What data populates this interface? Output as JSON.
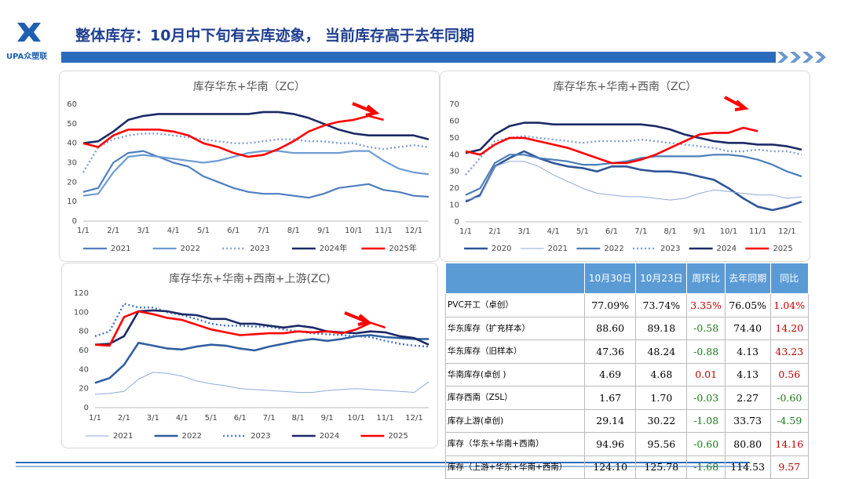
{
  "header": {
    "logo": "UPA众塑联",
    "title": "整体库存：10月中下旬有去库迹象， 当前库存高于去年同期"
  },
  "chart_data": [
    {
      "type": "line",
      "title": "库存华东+华南（ZC）",
      "categories": [
        "1/1",
        null,
        "2/1",
        null,
        "3/1",
        null,
        "4/1",
        null,
        "5/1",
        null,
        "6/1",
        null,
        "7/1",
        null,
        "8/1",
        null,
        "9/1",
        null,
        "10/1",
        null,
        "11/1",
        null,
        "12/1",
        null
      ],
      "ylim": [
        0,
        60
      ],
      "yticks": [
        0,
        10,
        20,
        30,
        40,
        50,
        60
      ],
      "grid": false,
      "series": [
        {
          "name": "2021",
          "color": "#4f7fc0",
          "style": "solid",
          "values": [
            15,
            17,
            30,
            35,
            36,
            33,
            30,
            28,
            23,
            20,
            17,
            15,
            14,
            14,
            13,
            12,
            14,
            17,
            18,
            19,
            16,
            15,
            13,
            12.5
          ]
        },
        {
          "name": "2022",
          "color": "#6e9cd2",
          "style": "solid",
          "values": [
            13,
            14,
            25,
            33,
            34,
            33,
            32,
            31,
            30,
            31,
            33,
            35,
            36,
            36,
            35,
            35,
            35,
            35,
            36,
            36,
            31,
            27,
            25,
            24
          ]
        },
        {
          "name": "2023",
          "color": "#7f9fd6",
          "style": "dotted",
          "values": [
            25,
            38,
            42,
            44,
            45,
            45,
            44,
            43,
            42,
            41,
            40,
            40,
            41,
            42,
            42,
            41,
            41,
            40,
            40,
            38,
            37,
            38,
            39,
            38
          ]
        },
        {
          "name": "2024年",
          "color": "#1c2a66",
          "style": "thick",
          "values": [
            40,
            41,
            46,
            52,
            54,
            55,
            55,
            55,
            55,
            55,
            55,
            55,
            56,
            56,
            55,
            53,
            50,
            47,
            45,
            44,
            44,
            44,
            44,
            42
          ]
        },
        {
          "name": "2025年",
          "color": "#ff0000",
          "style": "thick",
          "values": [
            40,
            38,
            44,
            47,
            47,
            47,
            46,
            44,
            40,
            38,
            35,
            33,
            34,
            37,
            41,
            46,
            49,
            51,
            52,
            54,
            52,
            null,
            null,
            null
          ]
        }
      ]
    },
    {
      "type": "line",
      "title": "库存华东+华南+西南（ZC）",
      "categories": [
        "1/1",
        null,
        "2/1",
        null,
        "3/1",
        null,
        "4/1",
        null,
        "5/1",
        null,
        "6/1",
        null,
        "7/1",
        null,
        "8/1",
        null,
        "9/1",
        null,
        "10/1",
        null,
        "11/1",
        null,
        "12/1",
        null
      ],
      "ylim": [
        0,
        70
      ],
      "yticks": [
        0,
        10,
        20,
        30,
        40,
        50,
        60,
        70
      ],
      "grid": false,
      "series": [
        {
          "name": "2020",
          "color": "#2f5597",
          "style": "thick",
          "values": [
            12,
            16,
            33,
            38,
            42,
            38,
            35,
            33,
            32,
            30,
            33,
            33,
            31,
            30,
            30,
            29,
            27,
            25,
            20,
            14,
            9,
            7,
            9,
            12
          ]
        },
        {
          "name": "2021",
          "color": "#8eaadb",
          "style": "thin",
          "values": [
            13,
            15,
            33,
            36,
            36,
            33,
            28,
            24,
            20,
            17,
            16,
            15,
            15,
            14,
            13,
            14,
            17,
            19,
            18,
            17,
            16,
            16,
            14,
            15
          ]
        },
        {
          "name": "2022",
          "color": "#4a7ebb",
          "style": "solid",
          "values": [
            16,
            20,
            35,
            40,
            40,
            38,
            37,
            36,
            34,
            34,
            35,
            36,
            38,
            39,
            39,
            39,
            39,
            40,
            40,
            39,
            37,
            34,
            30,
            27
          ]
        },
        {
          "name": "2023",
          "color": "#7f9fd6",
          "style": "dotted",
          "values": [
            28,
            38,
            48,
            50,
            51,
            50,
            49,
            48,
            47,
            48,
            48,
            48,
            49,
            48,
            47,
            46,
            45,
            44,
            42,
            42,
            43,
            42,
            42,
            40
          ]
        },
        {
          "name": "2024",
          "color": "#1c2a66",
          "style": "thick",
          "values": [
            41,
            43,
            52,
            57,
            59,
            59,
            58,
            58,
            58,
            58,
            58,
            58,
            58,
            57,
            55,
            52,
            50,
            48,
            47,
            47,
            46,
            46,
            45,
            43
          ]
        },
        {
          "name": "2025",
          "color": "#ff0000",
          "style": "thick",
          "values": [
            42,
            40,
            46,
            50,
            50,
            48,
            46,
            44,
            41,
            38,
            35,
            35,
            37,
            40,
            44,
            48,
            52,
            53,
            53,
            56,
            54,
            null,
            null,
            null
          ]
        }
      ]
    },
    {
      "type": "line",
      "title": "库存华东+华南+西南+上游(ZC)",
      "categories": [
        "1/1",
        null,
        "2/1",
        null,
        "3/1",
        null,
        "4/1",
        null,
        "5/1",
        null,
        "6/1",
        null,
        "7/1",
        null,
        "8/1",
        null,
        "9/1",
        null,
        "10/1",
        null,
        "11/1",
        null,
        "12/1",
        null
      ],
      "ylim": [
        0,
        120
      ],
      "yticks": [
        0,
        20,
        40,
        60,
        80,
        100,
        120
      ],
      "grid": false,
      "series": [
        {
          "name": "2021",
          "color": "#8eaadb",
          "style": "thin",
          "values": [
            14,
            15,
            17,
            30,
            37,
            36,
            33,
            28,
            25,
            23,
            20,
            19,
            18,
            17,
            16,
            16,
            18,
            19,
            20,
            19,
            18,
            17,
            16,
            27
          ]
        },
        {
          "name": "2022",
          "color": "#2f5fa0",
          "style": "thick",
          "values": [
            26,
            31,
            45,
            68,
            65,
            62,
            61,
            64,
            66,
            65,
            62,
            60,
            64,
            67,
            70,
            72,
            70,
            72,
            75,
            76,
            74,
            73,
            72,
            72
          ]
        },
        {
          "name": "2023",
          "color": "#4472c4",
          "style": "dotted",
          "values": [
            75,
            80,
            109,
            105,
            105,
            100,
            97,
            93,
            88,
            86,
            86,
            85,
            85,
            82,
            80,
            78,
            77,
            76,
            75,
            74,
            70,
            67,
            65,
            64
          ]
        },
        {
          "name": "2024",
          "color": "#1c2a66",
          "style": "thick",
          "values": [
            66,
            67,
            75,
            101,
            102,
            101,
            98,
            97,
            93,
            93,
            88,
            88,
            86,
            84,
            86,
            84,
            80,
            79,
            78,
            80,
            79,
            75,
            73,
            66
          ]
        },
        {
          "name": "2025",
          "color": "#ff0000",
          "style": "thick",
          "values": [
            66,
            65,
            95,
            101,
            98,
            94,
            92,
            87,
            82,
            79,
            76,
            77,
            78,
            78,
            80,
            79,
            80,
            78,
            82,
            89,
            84,
            null,
            null,
            null
          ]
        }
      ]
    }
  ],
  "table": {
    "header": [
      "10月30日",
      "10月23日",
      "周环比",
      "去年同期",
      "同比"
    ],
    "rows": [
      [
        "PVC开工（卓创）",
        "77.09%",
        "73.74%",
        "3.35%",
        "76.05%",
        "1.04%"
      ],
      [
        "华东库存（扩充样本）",
        "88.60",
        "89.18",
        "-0.58",
        "74.40",
        "14.20"
      ],
      [
        "华东库存（旧样本）",
        "47.36",
        "48.24",
        "-0.88",
        "4.13",
        "43.23"
      ],
      [
        "华南库存(卓创 )",
        "4.69",
        "4.68",
        "0.01",
        "4.13",
        "0.56"
      ],
      [
        "库存西南（ZSL）",
        "1.67",
        "1.70",
        "-0.03",
        "2.27",
        "-0.60"
      ],
      [
        "库存上游(卓创)",
        "29.14",
        "30.22",
        "-1.08",
        "33.73",
        "-4.59"
      ],
      [
        "库存（华东+华南+西南）",
        "94.96",
        "95.56",
        "-0.60",
        "80.80",
        "14.16"
      ],
      [
        "库存（上游+华东+华南+西南）",
        "124.10",
        "125.78",
        "-1.68",
        "114.53",
        "9.57"
      ]
    ]
  }
}
